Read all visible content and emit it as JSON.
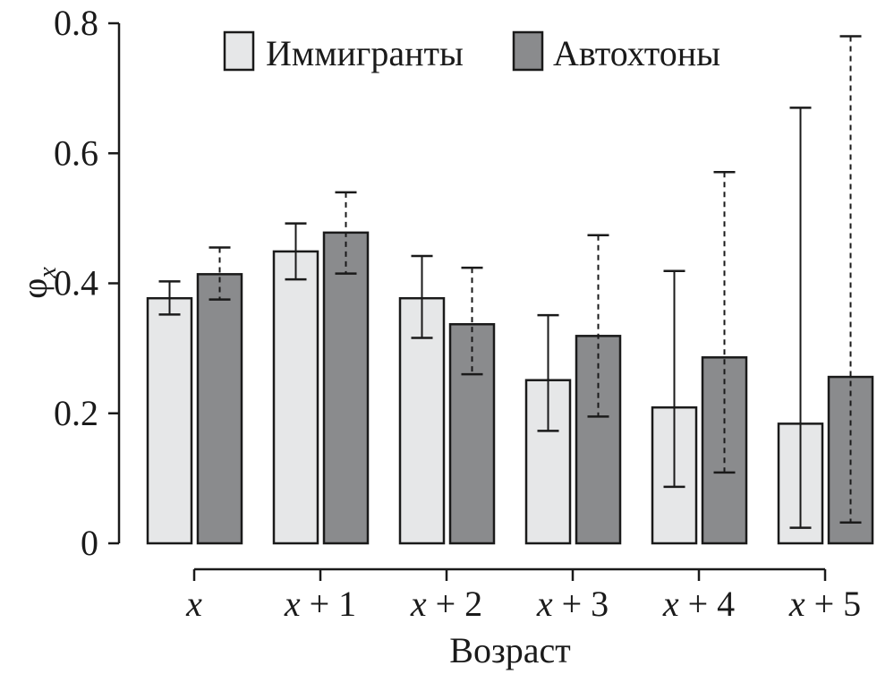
{
  "chart_data": {
    "type": "bar",
    "title": "",
    "xlabel": "Возраст",
    "ylabel": {
      "base": "φ",
      "sub": "x"
    },
    "ylim": [
      0,
      0.8
    ],
    "yticks": [
      {
        "value": 0,
        "label": "0"
      },
      {
        "value": 0.2,
        "label": "0.2"
      },
      {
        "value": 0.4,
        "label": "0.4"
      },
      {
        "value": 0.6,
        "label": "0.6"
      },
      {
        "value": 0.8,
        "label": "0.8"
      }
    ],
    "categories": [
      {
        "var": "x",
        "op": "",
        "num": ""
      },
      {
        "var": "x",
        "op": "+",
        "num": "1"
      },
      {
        "var": "x",
        "op": "+",
        "num": "2"
      },
      {
        "var": "x",
        "op": "+",
        "num": "3"
      },
      {
        "var": "x",
        "op": "+",
        "num": "4"
      },
      {
        "var": "x",
        "op": "+",
        "num": "5"
      }
    ],
    "legend_position": "top",
    "series": [
      {
        "name": "Иммигранты",
        "color": "#e6e7e8",
        "error_style": "solid",
        "values": [
          0.377,
          0.449,
          0.377,
          0.251,
          0.209,
          0.184
        ],
        "err_low": [
          0.352,
          0.406,
          0.316,
          0.173,
          0.087,
          0.024
        ],
        "err_high": [
          0.403,
          0.492,
          0.442,
          0.351,
          0.419,
          0.67
        ]
      },
      {
        "name": "Автохтоны",
        "color": "#8a8b8d",
        "error_style": "dashed",
        "values": [
          0.414,
          0.478,
          0.337,
          0.319,
          0.286,
          0.256
        ],
        "err_low": [
          0.375,
          0.415,
          0.26,
          0.195,
          0.109,
          0.032
        ],
        "err_high": [
          0.455,
          0.54,
          0.424,
          0.474,
          0.571,
          0.78
        ]
      }
    ]
  }
}
